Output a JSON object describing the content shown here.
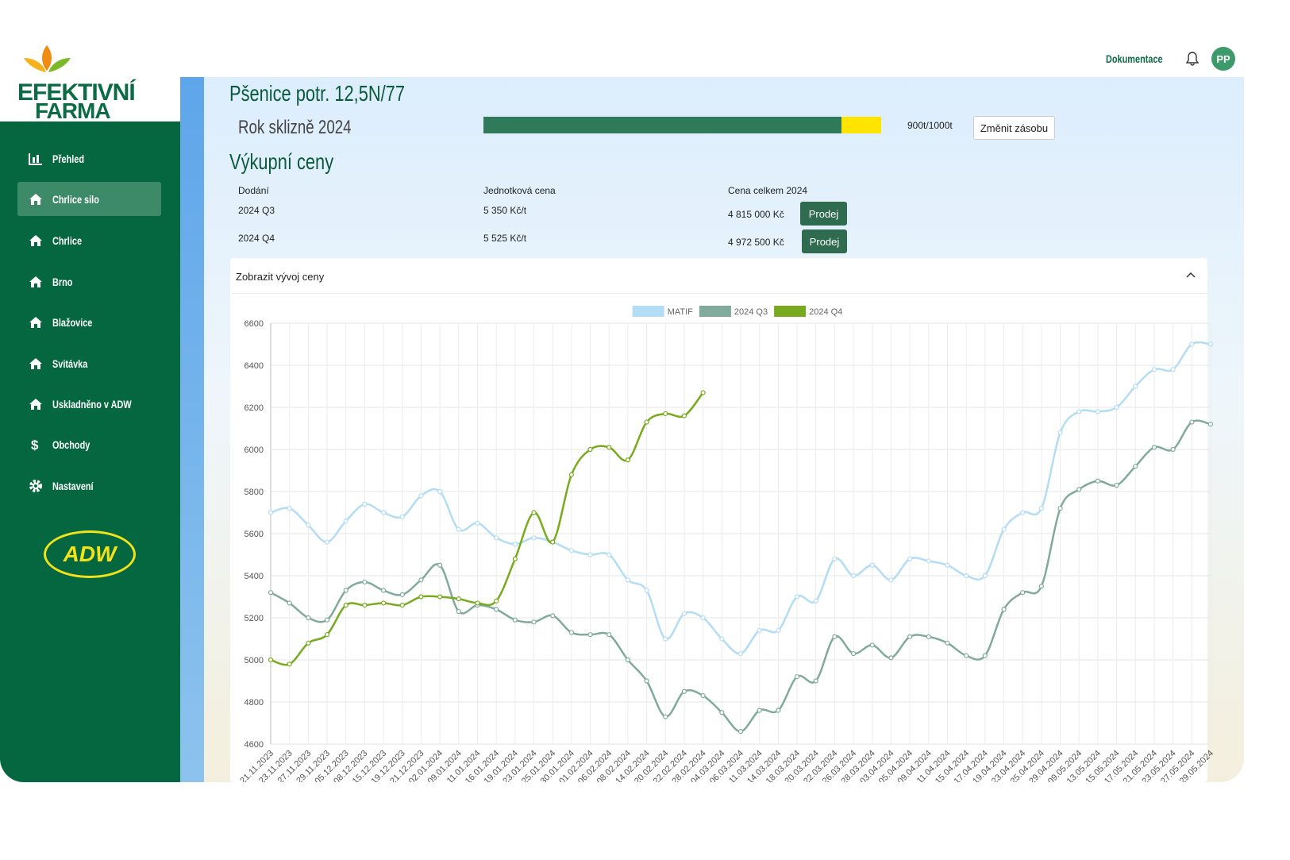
{
  "header": {
    "link": "Dokumentace",
    "avatar": "PP"
  },
  "brand": {
    "line1": "EFEKTIVNÍ",
    "line2": "FARMA",
    "partner": "ADW"
  },
  "sidebar": {
    "items": [
      "Přehled",
      "Chrlice silo",
      "Chrlice",
      "Brno",
      "Blažovice",
      "Svitávka",
      "Uskladněno v ADW",
      "Obchody",
      "Nastavení"
    ]
  },
  "product": {
    "title": "Pšenice potr. 12,5N/77",
    "harvest": "Rok sklizně 2024",
    "stock": {
      "value": 900,
      "max": 1000,
      "label": "900t/1000t"
    },
    "button": "Změnit zásobu"
  },
  "prices": {
    "title": "Výkupní ceny",
    "columns": [
      "Dodání",
      "Jednotková cena",
      "Cena celkem 2024"
    ],
    "rows": [
      [
        "2024 Q3",
        "5 350 Kč/t",
        "4 815 000 Kč"
      ],
      [
        "2024 Q4",
        "5 525 Kč/t",
        "4 972 500 Kč"
      ]
    ],
    "action": "Prodej"
  },
  "panel": {
    "title": "Zobrazit vývoj ceny"
  },
  "chart_data": {
    "type": "line",
    "categories": [
      "21.11.2023",
      "23.11.2023",
      "27.11.2023",
      "29.11.2023",
      "05.12.2023",
      "08.12.2023",
      "15.12.2023",
      "19.12.2023",
      "21.12.2023",
      "02.01.2024",
      "09.01.2024",
      "11.01.2024",
      "16.01.2024",
      "19.01.2024",
      "23.01.2024",
      "25.01.2024",
      "30.01.2024",
      "01.02.2024",
      "06.02.2024",
      "08.02.2024",
      "14.02.2024",
      "20.02.2024",
      "22.02.2024",
      "28.02.2024",
      "04.03.2024",
      "06.03.2024",
      "11.03.2024",
      "14.03.2024",
      "18.03.2024",
      "20.03.2024",
      "22.03.2024",
      "26.03.2024",
      "28.03.2024",
      "03.04.2024",
      "05.04.2024",
      "09.04.2024",
      "11.04.2024",
      "15.04.2024",
      "17.04.2024",
      "19.04.2024",
      "23.04.2024",
      "25.04.2024",
      "29.04.2024",
      "09.05.2024",
      "13.05.2024",
      "15.05.2024",
      "17.05.2024",
      "21.05.2024",
      "23.05.2024",
      "27.05.2024",
      "29.05.2024"
    ],
    "series": [
      {
        "name": "MATIF",
        "color": "#b3dcf5",
        "values": [
          5700,
          5720,
          5640,
          5560,
          5660,
          5740,
          5700,
          5680,
          5780,
          5800,
          5620,
          5650,
          5580,
          5550,
          5580,
          5560,
          5520,
          5500,
          5500,
          5380,
          5330,
          5100,
          5220,
          5200,
          5100,
          5030,
          5140,
          5140,
          5300,
          5280,
          5480,
          5400,
          5450,
          5380,
          5480,
          5470,
          5450,
          5400,
          5400,
          5620,
          5700,
          5720,
          6080,
          6180,
          6180,
          6200,
          6300,
          6380,
          6380,
          6500,
          6500
        ]
      },
      {
        "name": "2024 Q3",
        "color": "#80aa9c",
        "values": [
          5320,
          5270,
          5200,
          5190,
          5330,
          5370,
          5330,
          5310,
          5380,
          5450,
          5230,
          5260,
          5240,
          5190,
          5180,
          5210,
          5130,
          5120,
          5120,
          5000,
          4900,
          4730,
          4850,
          4830,
          4750,
          4660,
          4760,
          4760,
          4920,
          4900,
          5110,
          5030,
          5070,
          5010,
          5110,
          5110,
          5080,
          5020,
          5020,
          5240,
          5320,
          5350,
          5720,
          5810,
          5850,
          5830,
          5920,
          6010,
          6000,
          6130,
          6120
        ]
      },
      {
        "name": "2024 Q4",
        "color": "#77aa1c",
        "values": [
          5000,
          4980,
          5080,
          5120,
          5260,
          5260,
          5270,
          5260,
          5300,
          5300,
          5290,
          5270,
          5280,
          5480,
          5700,
          5560,
          5880,
          6000,
          6010,
          5950,
          6130,
          6170,
          6160,
          6270,
          null,
          null,
          null,
          null,
          null,
          null,
          null,
          null,
          null,
          null,
          null,
          null,
          null,
          null,
          null,
          null,
          null,
          null,
          null,
          null,
          null,
          null,
          null,
          null,
          null,
          null,
          null
        ]
      }
    ],
    "ylim": [
      4600,
      6600
    ],
    "yticks": [
      4600,
      4800,
      5000,
      5200,
      5400,
      5600,
      5800,
      6000,
      6200,
      6400,
      6600
    ],
    "grid": true,
    "legend": "top"
  }
}
